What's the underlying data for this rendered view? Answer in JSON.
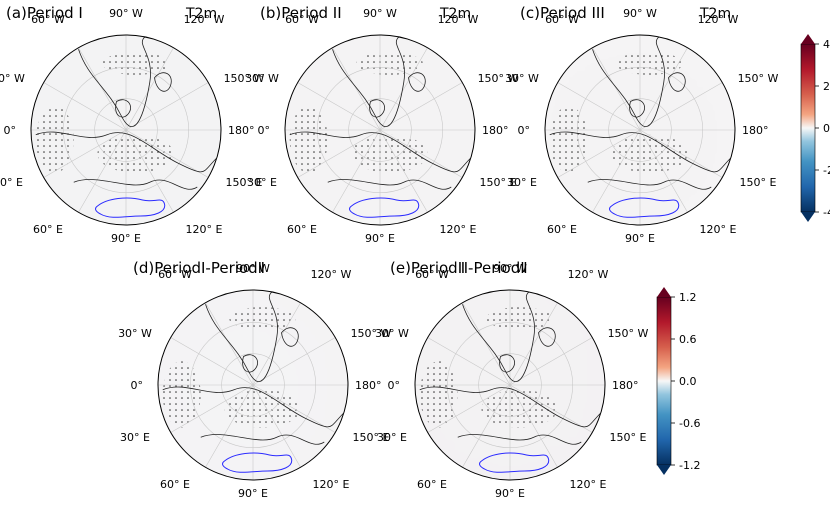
{
  "figure": {
    "panels": [
      {
        "id": "a",
        "title": "(a)Period  I",
        "variable": "T2m",
        "colorbar": "top"
      },
      {
        "id": "b",
        "title": "(b)Period  II",
        "variable": "T2m",
        "colorbar": "top"
      },
      {
        "id": "c",
        "title": "(c)Period  III",
        "variable": "T2m",
        "colorbar": "top"
      },
      {
        "id": "d",
        "title": "(d)PeriodⅠ-PeriodⅡ",
        "variable": "",
        "colorbar": "bottom"
      },
      {
        "id": "e",
        "title": "(e)PeriodⅢ-PeriodⅡ",
        "variable": "",
        "colorbar": "bottom"
      }
    ],
    "longitude_labels": {
      "top_left": "60° W",
      "top_center": "90° W",
      "top_right": "120° W",
      "upper_left": "30° W",
      "upper_right": "150° W",
      "mid_left": "0°",
      "mid_right": "180°",
      "lower_left": "30° E",
      "lower_right": "150° E",
      "bottom_left": "60° E",
      "bottom_center": "90° E",
      "bottom_right": "120° E"
    },
    "colorbars": {
      "top": {
        "ticks": [
          "4",
          "2",
          "0",
          "-2",
          "-4"
        ],
        "min": -4,
        "max": 4
      },
      "bottom": {
        "ticks": [
          "1.2",
          "0.6",
          "0.0",
          "-0.6",
          "-1.2"
        ],
        "min": -1.2,
        "max": 1.2
      }
    },
    "colors": {
      "warm_strong": "#8b0a1a",
      "warm": "#d6604d",
      "warm_light": "#f4a582",
      "neutral": "#f7f7f7",
      "cool_light": "#92c5de",
      "cool": "#4393c3",
      "cool_strong": "#10386b",
      "antarctica_outline": "#2b2bff"
    }
  }
}
